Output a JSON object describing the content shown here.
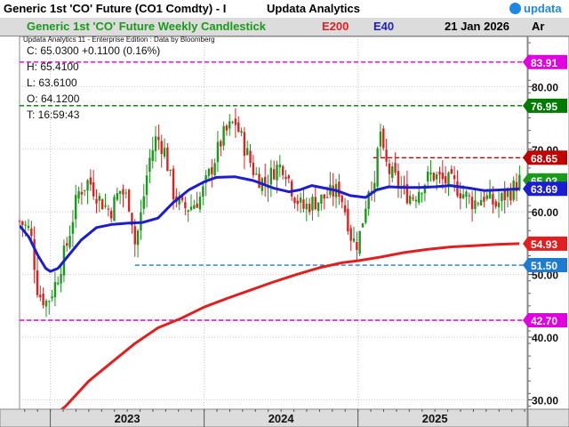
{
  "header": {
    "title": "Generic 1st 'CO' Future (CO1 Comdty) - I",
    "brand": "Updata Analytics",
    "logo_text": "updata",
    "chart_title": "Generic 1st 'CO' Future Weekly Candlestick",
    "ind1": "E200",
    "ind2": "E40",
    "date": "21 Jan 2026",
    "scale": "Ar"
  },
  "colors": {
    "title_green": "#1a9a1a",
    "e200_red": "#e02020",
    "e40_blue": "#1c1cd0",
    "up_candle": "#1a9a1a",
    "down_candle": "#e02020",
    "magenta": "#e000e0",
    "dark_green": "#007a00",
    "dark_red": "#c00000",
    "blue_dash": "#1e7bd0",
    "logo": "#1e88e5"
  },
  "info": {
    "vendor": "Updata Analytics 11 - Enterprise Edition : Data by Bloomberg",
    "close": "C: 65.0300  +0.1100 (0.16%)",
    "high": "H: 65.4100",
    "low": "L: 63.6100",
    "open": "O: 64.1200",
    "time": "T: 16:59:43"
  },
  "chart_data": {
    "type": "candlestick",
    "title": "Generic 1st 'CO' Future Weekly Candlestick",
    "x_range": [
      2022.8,
      2026.1
    ],
    "ylim": [
      28.5,
      88
    ],
    "x_ticks": [
      {
        "label": "2023",
        "x": 2023.0
      },
      {
        "label": "2024",
        "x": 2024.0
      },
      {
        "label": "2025",
        "x": 2025.0
      }
    ],
    "y_ticks": [
      30,
      40,
      50,
      60,
      70,
      80
    ],
    "y_tick_labels": [
      "30.00",
      "40.00",
      "50.00",
      "60.00",
      "70.00",
      "80.00"
    ],
    "price_tags": [
      {
        "label": "83.91",
        "value": 83.91,
        "color": "#e000e0",
        "text_color": "#ffffff"
      },
      {
        "label": "76.95",
        "value": 76.95,
        "color": "#007a00",
        "text_color": "#ffffff"
      },
      {
        "label": "68.65",
        "value": 68.65,
        "color": "#c00000",
        "text_color": "#ffffff"
      },
      {
        "label": "65.03",
        "value": 65.03,
        "color": "#1a9a1a",
        "text_color": "#ffffff"
      },
      {
        "label": "63.69",
        "value": 63.69,
        "color": "#1c1cd0",
        "text_color": "#ffffff"
      },
      {
        "label": "54.93",
        "value": 54.93,
        "color": "#e02020",
        "text_color": "#ffffff"
      },
      {
        "label": "51.50",
        "value": 51.5,
        "color": "#1e7bd0",
        "text_color": "#ffffff"
      },
      {
        "label": "42.70",
        "value": 42.7,
        "color": "#e000e0",
        "text_color": "#ffffff"
      }
    ],
    "hlines": [
      {
        "value": 83.91,
        "color": "#e000e0",
        "x_start": 2022.8
      },
      {
        "value": 76.95,
        "color": "#007a00",
        "x_start": 2022.8
      },
      {
        "value": 68.65,
        "color": "#c00000",
        "x_start": 2025.1
      },
      {
        "value": 51.5,
        "color": "#1e7bd0",
        "x_start": 2023.55
      },
      {
        "value": 42.7,
        "color": "#e000e0",
        "x_start": 2022.8
      }
    ],
    "price_path": [
      [
        2022.8,
        58.5
      ],
      [
        2022.87,
        57.0
      ],
      [
        2022.92,
        47.0
      ],
      [
        2022.98,
        45.5
      ],
      [
        2023.04,
        49.0
      ],
      [
        2023.11,
        55.0
      ],
      [
        2023.18,
        63.0
      ],
      [
        2023.25,
        65.0
      ],
      [
        2023.32,
        62.0
      ],
      [
        2023.39,
        60.0
      ],
      [
        2023.45,
        63.5
      ],
      [
        2023.49,
        62.5
      ],
      [
        2023.52,
        61.0
      ],
      [
        2023.55,
        55.0
      ],
      [
        2023.58,
        58.0
      ],
      [
        2023.64,
        68.0
      ],
      [
        2023.69,
        72.0
      ],
      [
        2023.74,
        70.0
      ],
      [
        2023.8,
        63.0
      ],
      [
        2023.86,
        60.5
      ],
      [
        2023.92,
        61.0
      ],
      [
        2023.98,
        62.5
      ],
      [
        2024.04,
        66.5
      ],
      [
        2024.12,
        72.0
      ],
      [
        2024.2,
        74.5
      ],
      [
        2024.26,
        70.5
      ],
      [
        2024.33,
        66.0
      ],
      [
        2024.4,
        64.5
      ],
      [
        2024.46,
        67.0
      ],
      [
        2024.52,
        67.5
      ],
      [
        2024.58,
        63.0
      ],
      [
        2024.64,
        60.5
      ],
      [
        2024.7,
        61.5
      ],
      [
        2024.76,
        62.0
      ],
      [
        2024.83,
        63.0
      ],
      [
        2024.88,
        63.5
      ],
      [
        2024.93,
        59.0
      ],
      [
        2024.96,
        55.5
      ],
      [
        2025.0,
        55.0
      ],
      [
        2025.04,
        60.0
      ],
      [
        2025.08,
        65.5
      ],
      [
        2025.11,
        63.0
      ],
      [
        2025.14,
        74.5
      ],
      [
        2025.16,
        69.0
      ],
      [
        2025.2,
        66.5
      ],
      [
        2025.25,
        65.0
      ],
      [
        2025.3,
        63.0
      ],
      [
        2025.36,
        62.5
      ],
      [
        2025.42,
        64.5
      ],
      [
        2025.48,
        66.0
      ],
      [
        2025.55,
        65.0
      ],
      [
        2025.62,
        64.5
      ],
      [
        2025.68,
        63.0
      ],
      [
        2025.75,
        61.5
      ],
      [
        2025.82,
        62.5
      ],
      [
        2025.9,
        61.0
      ],
      [
        2025.95,
        62.5
      ],
      [
        2026.0,
        63.5
      ],
      [
        2026.05,
        65.03
      ]
    ],
    "e40_path": [
      [
        2022.8,
        57.8
      ],
      [
        2022.86,
        56.0
      ],
      [
        2022.92,
        53.0
      ],
      [
        2022.97,
        51.0
      ],
      [
        2023.0,
        50.5
      ],
      [
        2023.05,
        51.0
      ],
      [
        2023.1,
        52.5
      ],
      [
        2023.2,
        55.5
      ],
      [
        2023.3,
        57.5
      ],
      [
        2023.4,
        58.0
      ],
      [
        2023.5,
        58.2
      ],
      [
        2023.6,
        58.3
      ],
      [
        2023.7,
        59.0
      ],
      [
        2023.8,
        61.5
      ],
      [
        2023.9,
        63.5
      ],
      [
        2024.0,
        64.8
      ],
      [
        2024.08,
        65.5
      ],
      [
        2024.2,
        65.6
      ],
      [
        2024.32,
        65.0
      ],
      [
        2024.45,
        63.8
      ],
      [
        2024.55,
        63.2
      ],
      [
        2024.62,
        63.5
      ],
      [
        2024.7,
        64.2
      ],
      [
        2024.78,
        63.8
      ],
      [
        2024.86,
        63.4
      ],
      [
        2024.95,
        62.6
      ],
      [
        2025.05,
        62.3
      ],
      [
        2025.12,
        63.5
      ],
      [
        2025.2,
        64.0
      ],
      [
        2025.3,
        63.9
      ],
      [
        2025.4,
        63.9
      ],
      [
        2025.5,
        64.0
      ],
      [
        2025.6,
        64.2
      ],
      [
        2025.72,
        63.8
      ],
      [
        2025.82,
        63.4
      ],
      [
        2025.92,
        63.5
      ],
      [
        2026.0,
        63.6
      ],
      [
        2026.05,
        63.69
      ]
    ],
    "e200_path": [
      [
        2022.8,
        23.5
      ],
      [
        2022.95,
        26.0
      ],
      [
        2023.1,
        29.0
      ],
      [
        2023.25,
        33.0
      ],
      [
        2023.4,
        36.0
      ],
      [
        2023.55,
        39.0
      ],
      [
        2023.7,
        41.5
      ],
      [
        2023.85,
        43.0
      ],
      [
        2024.0,
        44.8
      ],
      [
        2024.15,
        46.2
      ],
      [
        2024.3,
        47.5
      ],
      [
        2024.45,
        48.8
      ],
      [
        2024.6,
        50.0
      ],
      [
        2024.75,
        51.1
      ],
      [
        2024.9,
        51.9
      ],
      [
        2025.0,
        52.2
      ],
      [
        2025.15,
        52.8
      ],
      [
        2025.3,
        53.5
      ],
      [
        2025.45,
        54.0
      ],
      [
        2025.6,
        54.4
      ],
      [
        2025.75,
        54.6
      ],
      [
        2025.9,
        54.8
      ],
      [
        2026.05,
        54.93
      ]
    ]
  }
}
